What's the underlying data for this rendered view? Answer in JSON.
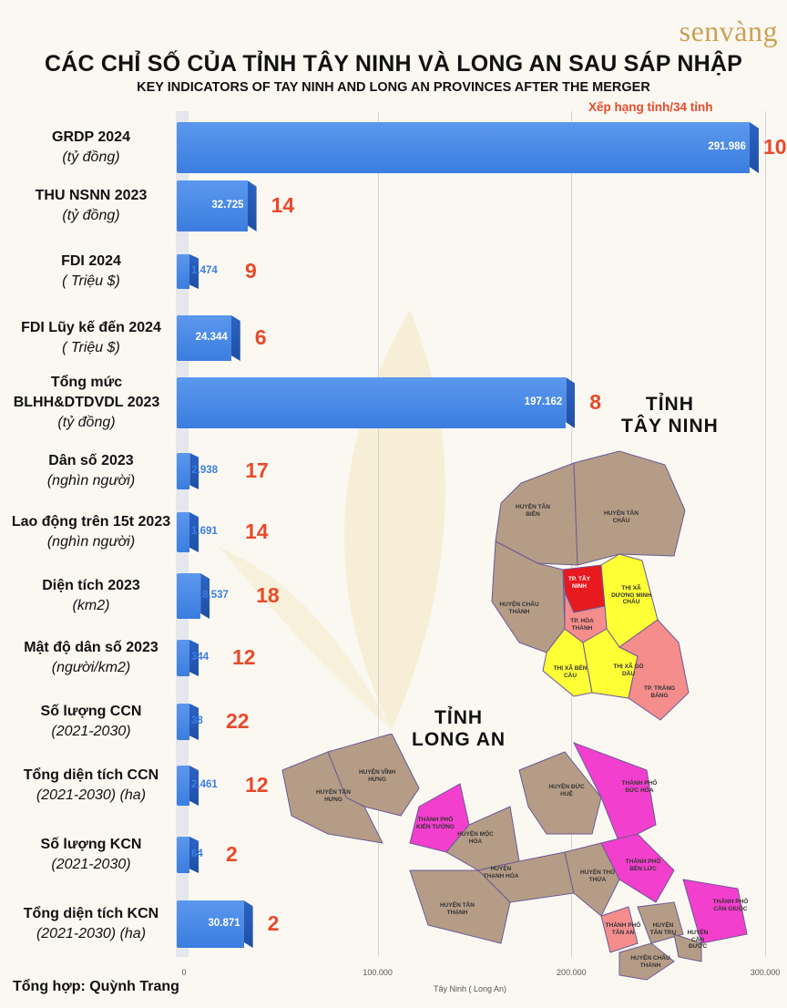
{
  "brand": "senvàng",
  "title": "CÁC CHỈ SỐ CỦA TỈNH TÂY NINH VÀ LONG AN SAU SÁP NHẬP",
  "subtitle": "KEY INDICATORS OF TAY NINH AND LONG AN PROVINCES AFTER THE MERGER",
  "rank_note": "Xếp hạng tỉnh/34 tỉnh",
  "credit": "Tổng hợp: Quỳnh Trang",
  "colors": {
    "bar": "#3b7ddf",
    "rank": "#e84a2b",
    "tay_ninh_core": "#e8191f",
    "town": "#ffff36",
    "city": "#f23fcd",
    "district": "#b59c86",
    "pink": "#f58d8d"
  },
  "chart_data": {
    "type": "bar",
    "orientation": "horizontal",
    "xlabel": "Tây Ninh ( Long An)",
    "xlim": [
      0,
      300000
    ],
    "xticks": [
      "0",
      "100.000",
      "200.000",
      "300.000"
    ],
    "grid": true,
    "items": [
      {
        "name": "GRDP 2024",
        "unit": "(tỷ đồng)",
        "value": 291986,
        "value_label": "291.986",
        "rank": "10"
      },
      {
        "name": "THU NSNN 2023",
        "unit": "(tỷ đồng)",
        "value": 32725,
        "value_label": "32.725",
        "rank": "14"
      },
      {
        "name": "FDI 2024",
        "unit": "( Triệu $)",
        "value": 1474,
        "value_label": "1.474",
        "rank": "9"
      },
      {
        "name": "FDI Lũy kế đến 2024",
        "unit": "( Triệu $)",
        "value": 24344,
        "value_label": "24.344",
        "rank": "6"
      },
      {
        "name": "Tổng mức BLHH&DTDVDL 2023",
        "unit": "(tỷ đồng)",
        "value": 197162,
        "value_label": "197.162",
        "rank": "8"
      },
      {
        "name": "Dân số 2023",
        "unit": "(nghìn người)",
        "value": 2938,
        "value_label": "2.938",
        "rank": "17"
      },
      {
        "name": "Lao động trên 15t 2023",
        "unit": "(nghìn người)",
        "value": 1691,
        "value_label": "1.691",
        "rank": "14"
      },
      {
        "name": "Diện tích 2023",
        "unit": "(km2)",
        "value": 8537,
        "value_label": "8.537",
        "rank": "18"
      },
      {
        "name": "Mật độ dân số 2023",
        "unit": "(người/km2)",
        "value": 344,
        "value_label": "344",
        "rank": "12"
      },
      {
        "name": "Số lượng CCN",
        "unit": "(2021-2030)",
        "value": 38,
        "value_label": "38",
        "rank": "22"
      },
      {
        "name": "Tổng diện tích CCN",
        "unit": "(2021-2030) (ha)",
        "value": 2461,
        "value_label": "2.461",
        "rank": "12"
      },
      {
        "name": "Số lượng KCN",
        "unit": "(2021-2030)",
        "value": 64,
        "value_label": "64",
        "rank": "2"
      },
      {
        "name": "Tổng diện tích KCN",
        "unit": "(2021-2030) (ha)",
        "value": 30871,
        "value_label": "30.871",
        "rank": "2"
      }
    ]
  },
  "map": {
    "tay_ninh_title": [
      "TỈNH",
      "TÂY NINH"
    ],
    "long_an_title": [
      "TỈNH",
      "LONG AN"
    ],
    "tay_ninh_districts": [
      "HUYỆN TÂN BIÊN",
      "HUYỆN TÂN CHÂU",
      "HUYỆN CHÂU THÀNH",
      "TP. TÂY NINH",
      "THỊ XÃ DƯƠNG MINH CHÂU",
      "TP. HÒA THÀNH",
      "THỊ XÃ BẾN CẦU",
      "THỊ XÃ GÒ DẦU",
      "TP. TRẢNG BÀNG"
    ],
    "long_an_districts": [
      "HUYỆN VĨNH HƯNG",
      "HUYỆN TÂN HƯNG",
      "THÀNH PHỐ KIẾN TƯỜNG",
      "HUYỆN MỘC HÓA",
      "HUYỆN ĐỨC HUỆ",
      "THÀNH PHỐ ĐỨC HÒA",
      "HUYỆN THẠNH HÓA",
      "HUYỆN TÂN THẠNH",
      "HUYỆN THỦ THỪA",
      "THÀNH PHỐ BẾN LỨC",
      "THÀNH PHỐ TÂN AN",
      "HUYỆN TÂN TRỤ",
      "HUYỆN CẦN ĐƯỚC",
      "THÀNH PHỐ CẦN GIUỘC",
      "HUYỆN CHÂU THÀNH"
    ]
  }
}
